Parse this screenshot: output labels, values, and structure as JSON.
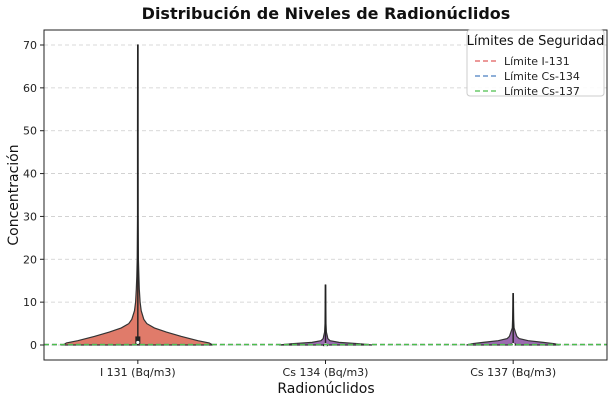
{
  "chart_data": {
    "type": "violin",
    "title": "Distribución de Niveles de Radionúclidos",
    "xlabel": "Radionúclidos",
    "ylabel": "Concentración",
    "ylim": [
      -3.5,
      73.5
    ],
    "yticks": [
      0,
      10,
      20,
      30,
      40,
      50,
      60,
      70
    ],
    "grid": true,
    "categories": [
      "I 131 (Bq/m3)",
      "Cs 134 (Bq/m3)",
      "Cs 137 (Bq/m3)"
    ],
    "series": [
      {
        "category": "I 131 (Bq/m3)",
        "color": "#e07b6a",
        "min": 0,
        "max": 70,
        "q1": 0.2,
        "median": 0.6,
        "q3": 2.0,
        "density": [
          [
            0,
            1.0
          ],
          [
            0.5,
            0.95
          ],
          [
            1,
            0.8
          ],
          [
            2,
            0.58
          ],
          [
            3,
            0.38
          ],
          [
            4,
            0.22
          ],
          [
            5,
            0.12
          ],
          [
            6,
            0.08
          ],
          [
            8,
            0.045
          ],
          [
            10,
            0.03
          ],
          [
            13,
            0.02
          ],
          [
            16,
            0.014
          ],
          [
            20,
            0.008
          ],
          [
            30,
            0.005
          ],
          [
            50,
            0.004
          ],
          [
            70,
            0.003
          ]
        ]
      },
      {
        "category": "Cs 134 (Bq/m3)",
        "color": "#9b6bb0",
        "min": 0,
        "max": 14,
        "q1": 0.0,
        "median": 0.05,
        "q3": 0.2,
        "density": [
          [
            0,
            0.62
          ],
          [
            0.3,
            0.45
          ],
          [
            0.6,
            0.18
          ],
          [
            1,
            0.06
          ],
          [
            1.5,
            0.03
          ],
          [
            2,
            0.025
          ],
          [
            3,
            0.012
          ],
          [
            5,
            0.007
          ],
          [
            8,
            0.005
          ],
          [
            11,
            0.004
          ],
          [
            14,
            0.003
          ]
        ]
      },
      {
        "category": "Cs 137 (Bq/m3)",
        "color": "#9b6bb0",
        "min": 0,
        "max": 12,
        "q1": 0.0,
        "median": 0.1,
        "q3": 0.4,
        "density": [
          [
            0,
            0.62
          ],
          [
            0.3,
            0.55
          ],
          [
            0.6,
            0.4
          ],
          [
            1,
            0.2
          ],
          [
            1.5,
            0.08
          ],
          [
            2,
            0.05
          ],
          [
            3,
            0.03
          ],
          [
            4,
            0.012
          ],
          [
            6,
            0.007
          ],
          [
            9,
            0.005
          ],
          [
            12,
            0.003
          ]
        ]
      }
    ],
    "reference_lines": [
      {
        "label": "Límite I-131",
        "value": 0.1,
        "color": "#e05c5c"
      },
      {
        "label": "Límite Cs-134",
        "value": 0.1,
        "color": "#4a7fc0"
      },
      {
        "label": "Límite Cs-137",
        "value": 0.1,
        "color": "#4cbf4c"
      }
    ],
    "legend": {
      "title": "Límites de Seguridad",
      "position": "top-right"
    }
  }
}
